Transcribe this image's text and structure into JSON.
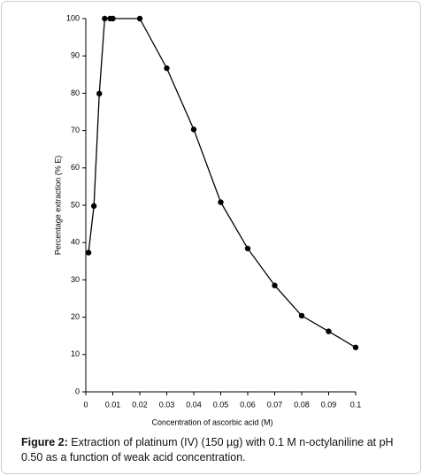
{
  "chart_data": {
    "type": "line",
    "x_label": "Concentration of ascorbic acid (M)",
    "y_label": "Percentage extraction (% E)",
    "x": [
      0.001,
      0.003,
      0.005,
      0.007,
      0.009,
      0.01,
      0.02,
      0.03,
      0.04,
      0.05,
      0.06,
      0.07,
      0.08,
      0.09,
      0.1
    ],
    "values": [
      37.3,
      49.8,
      79.9,
      100,
      100,
      100,
      100,
      86.7,
      70.3,
      50.8,
      38.4,
      28.5,
      20.4,
      16.2,
      11.9
    ],
    "color": "#000000",
    "xlim": [
      0,
      0.1
    ],
    "ylim": [
      0,
      100
    ],
    "xticks": [
      0,
      0.01,
      0.02,
      0.03,
      0.04,
      0.05,
      0.06,
      0.07,
      0.08,
      0.09,
      0.1
    ],
    "yticks": [
      0,
      10,
      20,
      30,
      40,
      50,
      60,
      70,
      80,
      90,
      100
    ]
  },
  "caption": {
    "label": "Figure 2:",
    "text": "Extraction of platinum (IV) (150 µg) with 0.1 M n-octylaniline at pH 0.50 as a function of weak acid concentration."
  }
}
